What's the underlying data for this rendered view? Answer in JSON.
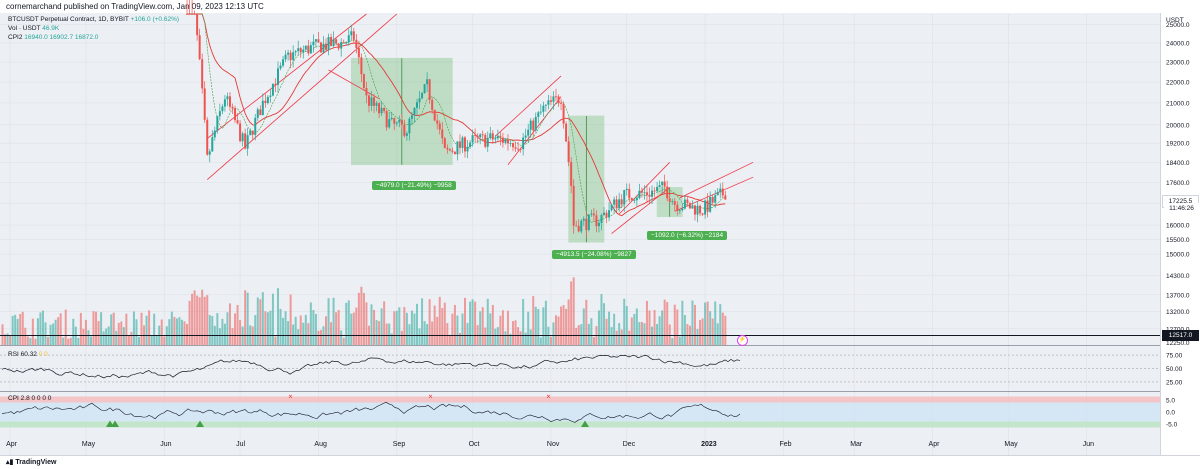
{
  "header": {
    "publisher": "cornemarchand published on TradingView.com, Jan 09, 2023 12:13 UTC"
  },
  "legend": {
    "symbol_line": "BTCUSDT Perpetual Contract, 1D, BYBIT",
    "change": "+106.0 (+0.62%)",
    "vol_label": "Vol · USDT",
    "vol_value": "46.9K",
    "cpi_label": "CPI2",
    "cpi_values": "16940.0  16902.7  16872.0",
    "rsi_label": "RSI",
    "rsi_value": "60.32",
    "rsi_extra": "0  0",
    "cpi_panel_label": "CPI",
    "cpi_panel_values": "2.8  0  0  0  0"
  },
  "measurements": [
    "−4979.0 (−21.49%) −9958",
    "−4913.5 (−24.08%) −9827",
    "−1092.0 (−6.32%) −2184"
  ],
  "price_scale": {
    "currency": "USDT",
    "ticks": [
      "25000.0",
      "24000.0",
      "23000.0",
      "22000.0",
      "21000.0",
      "20000.0",
      "19200.0",
      "18400.0",
      "17600.0",
      "16800.0",
      "16000.0",
      "15500.0",
      "15000.0",
      "14300.0",
      "13700.0",
      "13200.0",
      "12700.0"
    ],
    "last_price": "17225.5",
    "countdown": "11:46:26",
    "crosshair_price": "12517.0",
    "partial_tick": "12250.0"
  },
  "rsi_scale": [
    "75.00",
    "50.00",
    "25.00"
  ],
  "cpi_scale": [
    "5.0",
    "0.0",
    "-5.0"
  ],
  "time_axis": [
    "Apr",
    "May",
    "Jun",
    "Jul",
    "Aug",
    "Sep",
    "Oct",
    "Nov",
    "Dec",
    "2023",
    "Feb",
    "Mar",
    "Apr",
    "May",
    "Jun"
  ],
  "footer": {
    "brand": "TradingView"
  },
  "colors": {
    "up": "#26a69a",
    "down": "#ef5350",
    "channel": "#f23645",
    "measure_fill": "#4caf50"
  },
  "chart_data": {
    "type": "candlestick",
    "title": "BTCUSDT Perpetual Contract, 1D, BYBIT",
    "ylim": [
      12250,
      25600
    ],
    "x_range": [
      "2022-03-28",
      "2023-06-30"
    ],
    "approx_close_path": [
      [
        "2022-06-10",
        30000
      ],
      [
        "2022-06-18",
        18500
      ],
      [
        "2022-06-25",
        21300
      ],
      [
        "2022-07-03",
        19000
      ],
      [
        "2022-07-10",
        21000
      ],
      [
        "2022-07-20",
        23300
      ],
      [
        "2022-07-30",
        23800
      ],
      [
        "2022-08-10",
        24000
      ],
      [
        "2022-08-15",
        24300
      ],
      [
        "2022-08-20",
        21200
      ],
      [
        "2022-08-30",
        20000
      ],
      [
        "2022-09-05",
        19800
      ],
      [
        "2022-09-13",
        21800
      ],
      [
        "2022-09-20",
        18800
      ],
      [
        "2022-10-01",
        19300
      ],
      [
        "2022-10-10",
        19400
      ],
      [
        "2022-10-20",
        19200
      ],
      [
        "2022-10-29",
        20700
      ],
      [
        "2022-11-05",
        21300
      ],
      [
        "2022-11-09",
        17500
      ],
      [
        "2022-11-10",
        16000
      ],
      [
        "2022-11-20",
        16200
      ],
      [
        "2022-11-30",
        17100
      ],
      [
        "2022-12-10",
        17200
      ],
      [
        "2022-12-16",
        17400
      ],
      [
        "2022-12-20",
        16800
      ],
      [
        "2022-12-31",
        16550
      ],
      [
        "2023-01-09",
        17225.5
      ]
    ]
  }
}
